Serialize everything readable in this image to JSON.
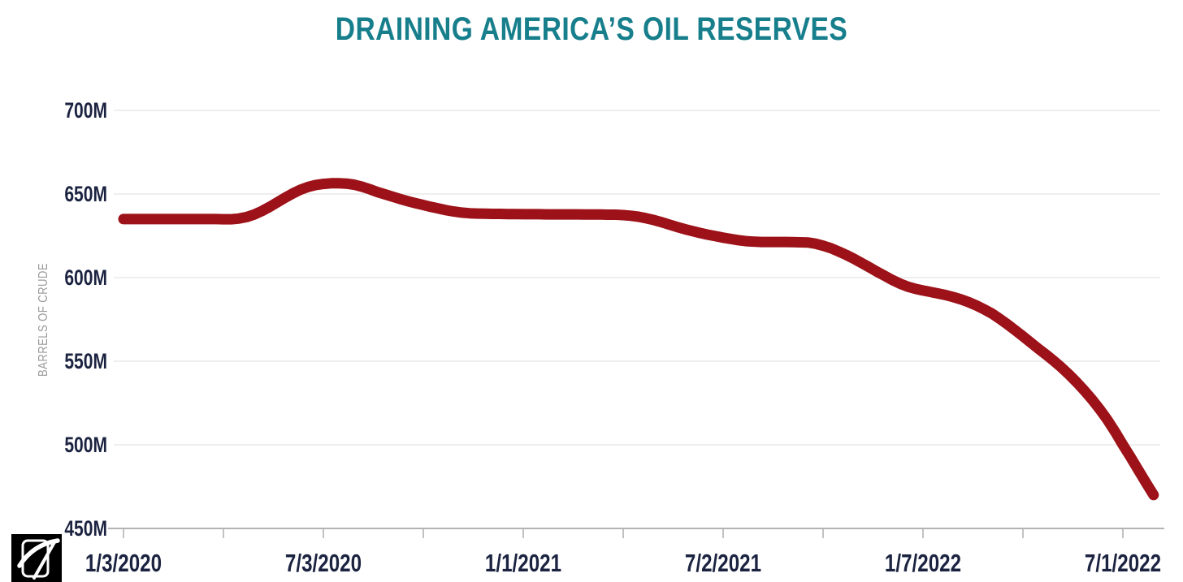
{
  "header": {
    "title": "DRAINING AMERICA’S OIL RESERVES"
  },
  "colors": {
    "background": "#ffffff",
    "title": "#177f8c",
    "line": "#9d1118",
    "tick_text": "#1b2340",
    "grid": "#e9e9e9",
    "axis": "#b3b3b3",
    "axis_title_text": "#9a9a9a",
    "logo_bg": "#000000",
    "logo_fg": "#ffffff"
  },
  "logo": {
    "icon": "pickaxe-icon"
  },
  "chart_data": {
    "type": "line",
    "title": "DRAINING AMERICA’S OIL RESERVES",
    "xlabel": "",
    "ylabel": "BARRELS OF CRUDE",
    "units": "million barrels",
    "ylim": [
      450,
      700
    ],
    "grid": "horizontal",
    "legend": "none",
    "y_tick_labels": [
      "700M",
      "650M",
      "600M",
      "550M",
      "500M",
      "450M"
    ],
    "y_tick_values": [
      700,
      650,
      600,
      550,
      500,
      450
    ],
    "x_tick_labels": [
      "1/3/2020",
      "7/3/2020",
      "1/1/2021",
      "7/2/2021",
      "1/7/2022",
      "7/1/2022"
    ],
    "x_ticks_weeks": [
      0,
      13,
      26,
      39,
      52,
      65,
      78,
      91,
      104,
      117,
      130
    ],
    "x_label_tick_indices": [
      0,
      2,
      4,
      6,
      8,
      10
    ],
    "x_start_date": "1/3/2020",
    "x_interval": "weekly",
    "values": [
      635.0,
      635.0,
      635.0,
      635.0,
      635.0,
      635.0,
      635.0,
      635.0,
      635.0,
      635.0,
      635.0,
      635.0,
      635.0,
      634.9,
      634.9,
      635.3,
      636.2,
      637.7,
      639.8,
      642.3,
      645.0,
      647.7,
      650.3,
      652.5,
      654.2,
      655.4,
      656.0,
      656.4,
      656.4,
      656.2,
      655.6,
      654.4,
      652.9,
      651.2,
      649.8,
      648.4,
      647.0,
      645.7,
      644.5,
      643.4,
      642.3,
      641.3,
      640.3,
      639.5,
      638.9,
      638.5,
      638.3,
      638.2,
      638.1,
      638.1,
      638.0,
      638.0,
      637.9,
      637.9,
      637.9,
      637.8,
      637.8,
      637.8,
      637.8,
      637.8,
      637.7,
      637.7,
      637.7,
      637.6,
      637.6,
      637.4,
      637.0,
      636.4,
      635.5,
      634.4,
      633.1,
      631.7,
      630.3,
      629.0,
      627.8,
      626.7,
      625.7,
      624.8,
      623.9,
      623.1,
      622.4,
      621.8,
      621.5,
      621.3,
      621.3,
      621.3,
      621.3,
      621.2,
      621.1,
      621.0,
      620.3,
      619.1,
      617.6,
      615.7,
      613.6,
      611.3,
      608.8,
      606.2,
      603.6,
      601.1,
      598.6,
      596.4,
      594.6,
      593.3,
      592.3,
      591.4,
      590.5,
      589.5,
      588.3,
      586.9,
      585.2,
      583.2,
      580.9,
      578.4,
      575.3,
      572.0,
      568.5,
      564.9,
      561.2,
      557.5,
      554.0,
      550.3,
      546.3,
      542.0,
      537.4,
      532.4,
      527.0,
      521.2,
      514.8,
      507.7,
      500.0,
      492.6,
      485.0,
      477.4,
      470.0
    ]
  }
}
